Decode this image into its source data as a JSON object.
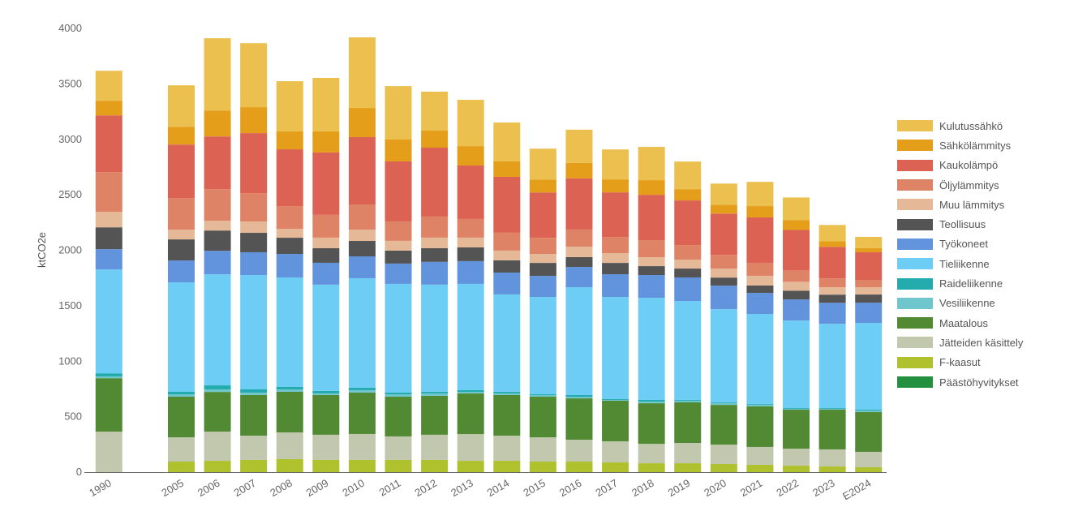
{
  "chart_data": {
    "type": "bar",
    "stacked": true,
    "title": "",
    "xlabel": "",
    "ylabel": "ktCO2e",
    "ylim": [
      0,
      4000
    ],
    "yticks": [
      0,
      500,
      1000,
      1500,
      2000,
      2500,
      3000,
      3500,
      4000
    ],
    "grid": false,
    "legend_position": "right",
    "categories": [
      "1990",
      "",
      "2005",
      "2006",
      "2007",
      "2008",
      "2009",
      "2010",
      "2011",
      "2012",
      "2013",
      "2014",
      "2015",
      "2016",
      "2017",
      "2018",
      "2019",
      "2020",
      "2021",
      "2022",
      "2023",
      "E2024"
    ],
    "series": [
      {
        "name": "Päästöhyvitykset",
        "color": "#22903F",
        "values": [
          0,
          null,
          0,
          0,
          0,
          0,
          0,
          0,
          0,
          0,
          0,
          0,
          0,
          0,
          0,
          0,
          0,
          0,
          0,
          0,
          0,
          0
        ]
      },
      {
        "name": "F-kaasut",
        "color": "#AFC12C",
        "values": [
          0,
          null,
          95,
          102,
          110,
          117,
          110,
          110,
          110,
          110,
          102,
          102,
          95,
          95,
          88,
          80,
          80,
          73,
          66,
          58,
          51,
          44
        ]
      },
      {
        "name": "Jätteiden käsittely",
        "color": "#C1C8AE",
        "values": [
          365,
          null,
          219,
          263,
          219,
          241,
          227,
          234,
          212,
          227,
          241,
          227,
          219,
          197,
          190,
          175,
          183,
          175,
          161,
          154,
          154,
          139
        ]
      },
      {
        "name": "Maatalous",
        "color": "#528A34",
        "values": [
          482,
          null,
          366,
          358,
          366,
          366,
          358,
          373,
          358,
          351,
          366,
          366,
          366,
          373,
          366,
          366,
          366,
          358,
          366,
          351,
          358,
          358
        ]
      },
      {
        "name": "Vesiliikenne",
        "color": "#6FC6CC",
        "values": [
          15,
          null,
          22,
          22,
          22,
          22,
          15,
          22,
          22,
          22,
          15,
          15,
          15,
          15,
          7,
          15,
          15,
          15,
          15,
          7,
          7,
          15
        ]
      },
      {
        "name": "Raideliikenne",
        "color": "#23ABAD",
        "values": [
          29,
          null,
          22,
          37,
          29,
          22,
          22,
          22,
          15,
          15,
          15,
          15,
          7,
          15,
          7,
          15,
          7,
          7,
          7,
          7,
          7,
          7
        ]
      },
      {
        "name": "Tieliikenne",
        "color": "#6ECDF5",
        "values": [
          936,
          null,
          987,
          1001,
          1031,
          987,
          958,
          987,
          980,
          965,
          958,
          877,
          877,
          972,
          921,
          921,
          892,
          841,
          811,
          789,
          760,
          782
        ]
      },
      {
        "name": "Työkoneet",
        "color": "#6294DE",
        "values": [
          183,
          null,
          197,
          212,
          205,
          212,
          197,
          197,
          183,
          205,
          205,
          197,
          190,
          183,
          205,
          205,
          212,
          212,
          190,
          190,
          190,
          183
        ]
      },
      {
        "name": "Teollisuus",
        "color": "#545454",
        "values": [
          197,
          null,
          190,
          183,
          175,
          146,
          132,
          139,
          117,
          124,
          124,
          110,
          117,
          88,
          102,
          80,
          80,
          73,
          66,
          80,
          73,
          73
        ]
      },
      {
        "name": "Muu lämmitys",
        "color": "#E5B998",
        "values": [
          139,
          null,
          88,
          88,
          102,
          80,
          95,
          102,
          88,
          95,
          88,
          88,
          80,
          95,
          88,
          80,
          80,
          80,
          88,
          80,
          66,
          66
        ]
      },
      {
        "name": "Öljylämmitys",
        "color": "#DE8365",
        "values": [
          358,
          null,
          285,
          285,
          256,
          205,
          205,
          227,
          175,
          190,
          168,
          161,
          146,
          154,
          146,
          154,
          132,
          124,
          117,
          102,
          80,
          66
        ]
      },
      {
        "name": "Kaukolämpö",
        "color": "#DC6254",
        "values": [
          512,
          null,
          482,
          475,
          541,
          512,
          563,
          607,
          541,
          621,
          482,
          504,
          409,
          461,
          402,
          409,
          402,
          373,
          409,
          365,
          285,
          249
        ]
      },
      {
        "name": "Sähkölämmitys",
        "color": "#E49E19",
        "values": [
          132,
          null,
          161,
          234,
          234,
          161,
          190,
          263,
          197,
          154,
          175,
          139,
          117,
          139,
          117,
          132,
          102,
          80,
          102,
          88,
          51,
          37
        ]
      },
      {
        "name": "Kulutussähkö",
        "color": "#EBC04E",
        "values": [
          270,
          null,
          373,
          651,
          577,
          453,
          482,
          636,
          482,
          351,
          417,
          351,
          278,
          300,
          270,
          300,
          249,
          190,
          219,
          205,
          146,
          102
        ]
      }
    ],
    "legend": [
      "Kulutussähkö",
      "Sähkölämmitys",
      "Kaukolämpö",
      "Öljylämmitys",
      "Muu lämmitys",
      "Teollisuus",
      "Työkoneet",
      "Tieliikenne",
      "Raideliikenne",
      "Vesiliikenne",
      "Maatalous",
      "Jätteiden käsittely",
      "F-kaasut",
      "Päästöhyvitykset"
    ]
  }
}
